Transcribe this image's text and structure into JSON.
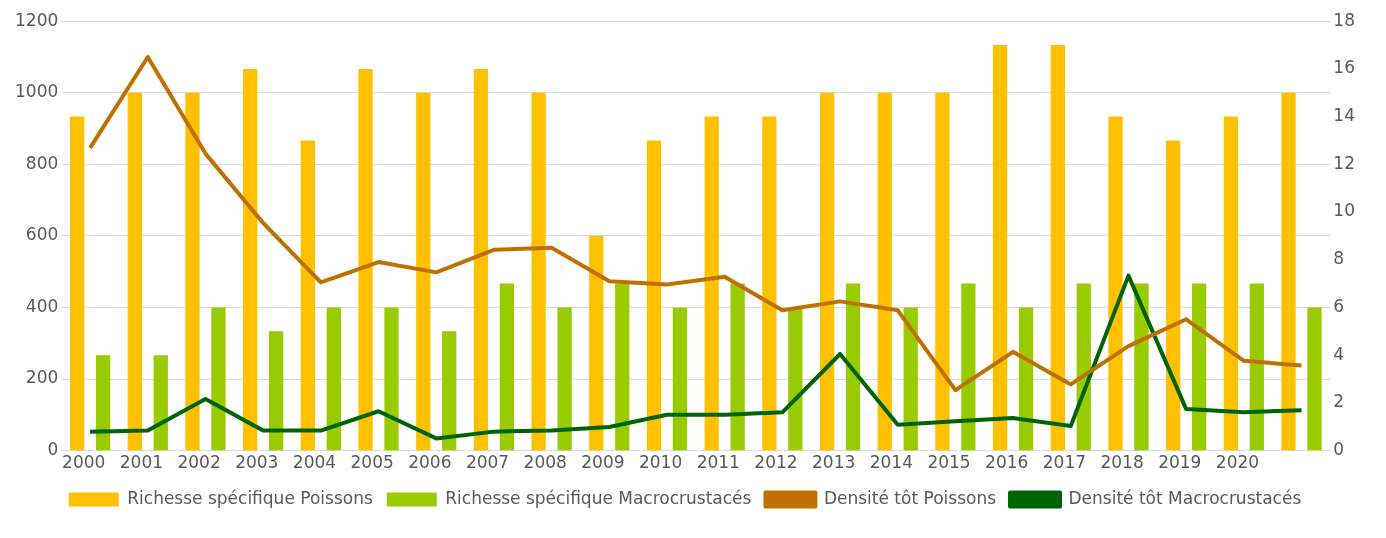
{
  "chart_data": {
    "type": "bar",
    "categories": [
      "2000",
      "2001",
      "2002",
      "2003",
      "2004",
      "2005",
      "2006",
      "2007",
      "2008",
      "2009",
      "2010",
      "2011",
      "2012",
      "2013",
      "2014",
      "2015",
      "2016",
      "2017",
      "2018",
      "2019",
      "2020",
      null
    ],
    "series": [
      {
        "name": "Richesse spécifique Poissons",
        "axis": "y2",
        "color": "#ffc000",
        "values": [
          14,
          15,
          15,
          16,
          13,
          16,
          15,
          16,
          15,
          9,
          13,
          14,
          14,
          15,
          15,
          15,
          17,
          17,
          14,
          13,
          14,
          15
        ]
      },
      {
        "name": "Richesse spécifique Macrocrustacés",
        "axis": "y2",
        "color": "#99cc00",
        "values": [
          4,
          4,
          6,
          5,
          6,
          6,
          5,
          7,
          6,
          7,
          6,
          7,
          6,
          7,
          6,
          7,
          6,
          7,
          7,
          7,
          7,
          6
        ]
      },
      {
        "name": "Densité tôt Poissons",
        "type": "line",
        "axis": "y",
        "color": "#c07000",
        "values": [
          846,
          1100,
          830,
          636,
          470,
          527,
          498,
          561,
          567,
          473,
          464,
          486,
          392,
          417,
          392,
          169,
          276,
          185,
          292,
          367,
          251,
          238
        ]
      },
      {
        "name": "Densité tôt Macrocrustacés",
        "type": "line",
        "axis": "y",
        "color": "#006400",
        "values": [
          53,
          56,
          144,
          56,
          56,
          110,
          34,
          53,
          56,
          66,
          100,
          100,
          107,
          270,
          72,
          82,
          91,
          69,
          489,
          116,
          107,
          113
        ]
      }
    ],
    "ylim": [
      0,
      1200
    ],
    "yticks": [
      0,
      200,
      400,
      600,
      800,
      1000,
      1200
    ],
    "y2lim": [
      0,
      18
    ],
    "y2ticks": [
      0,
      2,
      4,
      6,
      8,
      10,
      12,
      14,
      16,
      18
    ],
    "grid": "y",
    "legend": "bottom",
    "marker": "none"
  }
}
